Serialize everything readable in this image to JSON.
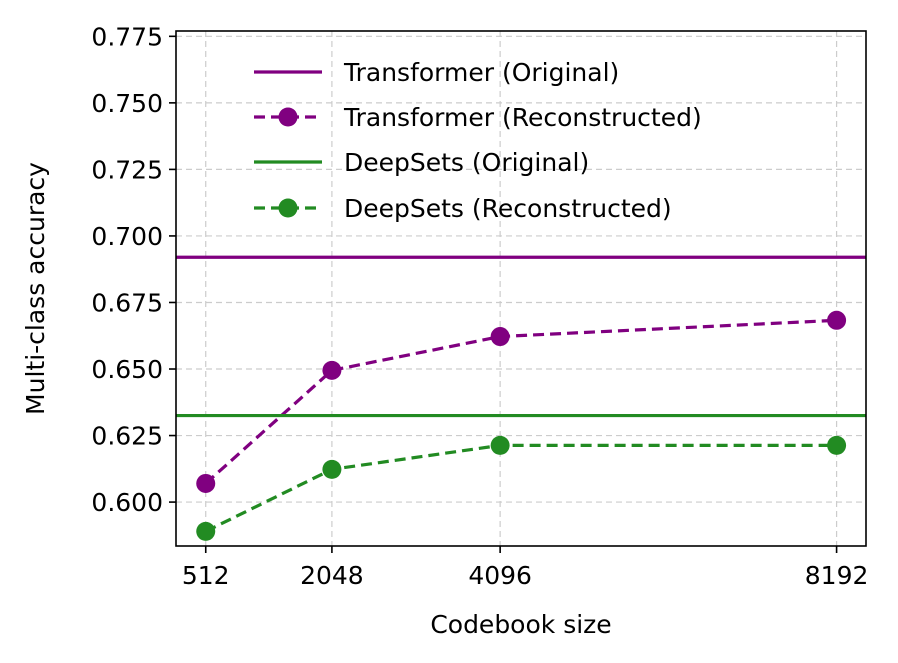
{
  "chart_data": {
    "type": "line",
    "xlabel": "Codebook size",
    "ylabel": "Multi-class accuracy",
    "x": [
      512,
      2048,
      4096,
      8192
    ],
    "x_tick_labels": [
      "512",
      "2048",
      "4096",
      "8192"
    ],
    "xlim": [
      150,
      8550
    ],
    "ylim": [
      0.5835,
      0.777
    ],
    "y_ticks": [
      0.6,
      0.625,
      0.65,
      0.675,
      0.7,
      0.725,
      0.75,
      0.775
    ],
    "y_tick_labels": [
      "0.600",
      "0.625",
      "0.650",
      "0.675",
      "0.700",
      "0.725",
      "0.750",
      "0.775"
    ],
    "grid": true,
    "legend_position": "top-right",
    "series": [
      {
        "name": "Transformer (Original)",
        "kind": "hline",
        "value": 0.692,
        "color": "#800080",
        "dashed": false,
        "marker": false
      },
      {
        "name": "Transformer (Reconstructed)",
        "kind": "line",
        "values": [
          0.607,
          0.6495,
          0.6622,
          0.6683
        ],
        "color": "#800080",
        "dashed": true,
        "marker": true
      },
      {
        "name": "DeepSets (Original)",
        "kind": "hline",
        "value": 0.6325,
        "color": "#228B22",
        "dashed": false,
        "marker": false
      },
      {
        "name": "DeepSets (Reconstructed)",
        "kind": "line",
        "values": [
          0.589,
          0.6123,
          0.6213,
          0.6213
        ],
        "color": "#228B22",
        "dashed": true,
        "marker": true
      }
    ]
  }
}
